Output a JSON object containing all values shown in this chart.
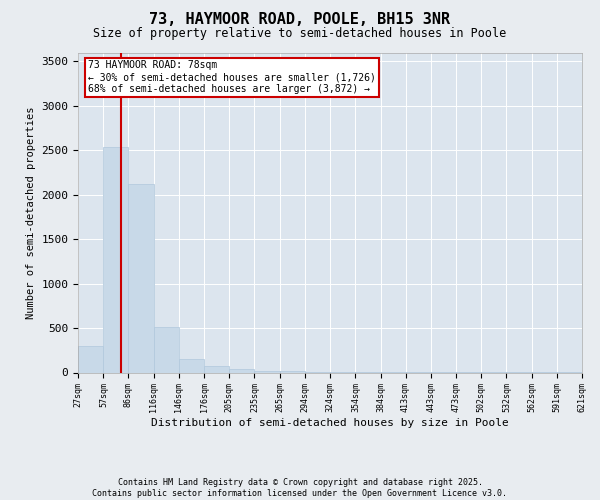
{
  "title": "73, HAYMOOR ROAD, POOLE, BH15 3NR",
  "subtitle": "Size of property relative to semi-detached houses in Poole",
  "xlabel": "Distribution of semi-detached houses by size in Poole",
  "ylabel": "Number of semi-detached properties",
  "bins": [
    27,
    57,
    86,
    116,
    146,
    176,
    205,
    235,
    265,
    294,
    324,
    354,
    384,
    413,
    443,
    473,
    502,
    532,
    562,
    591,
    621
  ],
  "bar_heights": [
    300,
    2540,
    2120,
    510,
    155,
    70,
    35,
    20,
    12,
    8,
    6,
    5,
    4,
    3,
    3,
    2,
    2,
    1,
    1,
    1
  ],
  "bar_color": "#c8d9e8",
  "bar_edgecolor": "#b0c8dc",
  "property_value": 78,
  "vline_color": "#cc0000",
  "annotation_title": "73 HAYMOOR ROAD: 78sqm",
  "annotation_line1": "← 30% of semi-detached houses are smaller (1,726)",
  "annotation_line2": "68% of semi-detached houses are larger (3,872) →",
  "ylim": [
    0,
    3600
  ],
  "yticks": [
    0,
    500,
    1000,
    1500,
    2000,
    2500,
    3000,
    3500
  ],
  "footer1": "Contains HM Land Registry data © Crown copyright and database right 2025.",
  "footer2": "Contains public sector information licensed under the Open Government Licence v3.0.",
  "bg_color": "#e8ecf0",
  "plot_bg_color": "#dce5ee"
}
